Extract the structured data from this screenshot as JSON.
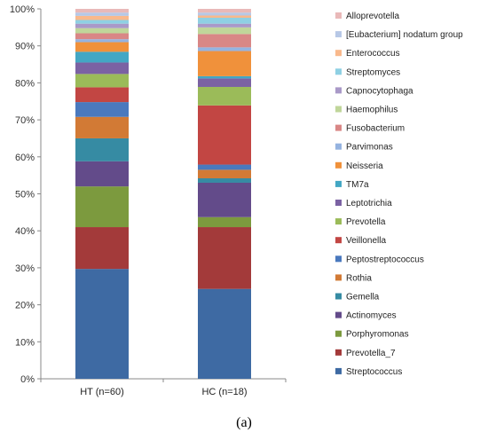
{
  "caption": "(a)",
  "colors": {
    "Streptococcus": "#3e6aa3",
    "Prevotella_7": "#a33a3a",
    "Porphyromonas": "#7c9a3e",
    "Actinomyces": "#634b8a",
    "Gemella": "#368ba3",
    "Rothia": "#d27a35",
    "Peptostreptococcus": "#4a79be",
    "Veillonella": "#c24643",
    "Prevotella": "#9bbb59",
    "Leptotrichia": "#7b62a3",
    "TM7a": "#43a7c4",
    "Neisseria": "#f0913b",
    "Parvimonas": "#95b3e0",
    "Fusobacterium": "#d98786",
    "Haemophilus": "#c0d69a",
    "Capnocytophaga": "#a999c8",
    "Streptomyces": "#8fd0e3",
    "Enterococcus": "#f9b98c",
    "[Eubacterium] nodatum group": "#b7c8e6",
    "Alloprevotella": "#e9b9b9"
  },
  "chart_data": {
    "type": "bar",
    "stacked": true,
    "percent": true,
    "categories": [
      "HT (n=60)",
      "HC (n=18)"
    ],
    "ylim": [
      0,
      100
    ],
    "yticks": [
      "0%",
      "10%",
      "20%",
      "30%",
      "40%",
      "50%",
      "60%",
      "70%",
      "80%",
      "90%",
      "100%"
    ],
    "grid": false,
    "legend_position": "right",
    "series": [
      {
        "name": "Streptococcus",
        "values": [
          29.7,
          24.3
        ]
      },
      {
        "name": "Prevotella_7",
        "values": [
          11.3,
          16.7
        ]
      },
      {
        "name": "Porphyromonas",
        "values": [
          11.0,
          2.7
        ]
      },
      {
        "name": "Actinomyces",
        "values": [
          6.8,
          9.3
        ]
      },
      {
        "name": "Gemella",
        "values": [
          6.2,
          1.2
        ]
      },
      {
        "name": "Rothia",
        "values": [
          5.8,
          2.3
        ]
      },
      {
        "name": "Peptostreptococcus",
        "values": [
          4.0,
          1.4
        ]
      },
      {
        "name": "Veillonella",
        "values": [
          4.0,
          16.0
        ]
      },
      {
        "name": "Prevotella",
        "values": [
          3.6,
          5.0
        ]
      },
      {
        "name": "Leptotrichia",
        "values": [
          3.1,
          2.3
        ]
      },
      {
        "name": "TM7a",
        "values": [
          2.9,
          0.6
        ]
      },
      {
        "name": "Neisseria",
        "values": [
          2.6,
          6.8
        ]
      },
      {
        "name": "Parvimonas",
        "values": [
          0.8,
          1.0
        ]
      },
      {
        "name": "Fusobacterium",
        "values": [
          1.6,
          3.6
        ]
      },
      {
        "name": "Haemophilus",
        "values": [
          1.4,
          1.8
        ]
      },
      {
        "name": "Capnocytophaga",
        "values": [
          1.2,
          1.0
        ]
      },
      {
        "name": "Streptomyces",
        "values": [
          1.0,
          1.6
        ]
      },
      {
        "name": "Enterococcus",
        "values": [
          1.1,
          0.6
        ]
      },
      {
        "name": "[Eubacterium] nodatum group",
        "values": [
          0.9,
          0.8
        ]
      },
      {
        "name": "Alloprevotella",
        "values": [
          1.0,
          1.0
        ]
      }
    ]
  }
}
